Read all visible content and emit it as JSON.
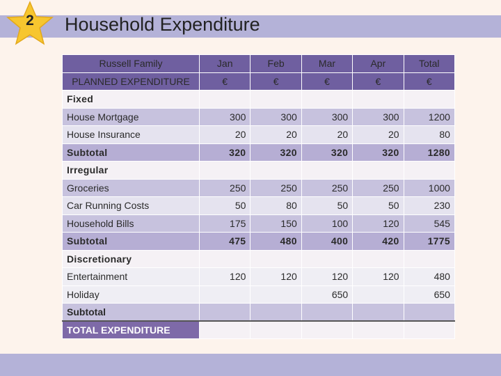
{
  "slide": {
    "number": "2",
    "title": "Household Expenditure"
  },
  "table": {
    "header1": {
      "label": "Russell Family",
      "cols": [
        "Jan",
        "Feb",
        "Mar",
        "Apr",
        "Total"
      ]
    },
    "header2": {
      "label": "PLANNED EXPENDITURE",
      "cols": [
        "€",
        "€",
        "€",
        "€",
        "€"
      ]
    },
    "fixed_label": "Fixed",
    "house_mortgage": {
      "label": "House Mortgage",
      "values": [
        "300",
        "300",
        "300",
        "300",
        "1200"
      ]
    },
    "house_insurance": {
      "label": "House Insurance",
      "values": [
        "20",
        "20",
        "20",
        "20",
        "80"
      ]
    },
    "fixed_subtotal": {
      "label": "Subtotal",
      "values": [
        "320",
        "320",
        "320",
        "320",
        "1280"
      ]
    },
    "irregular_label": "Irregular",
    "groceries": {
      "label": "Groceries",
      "values": [
        "250",
        "250",
        "250",
        "250",
        "1000"
      ]
    },
    "car_running_costs": {
      "label": "Car Running Costs",
      "values": [
        "50",
        "80",
        "50",
        "50",
        "230"
      ]
    },
    "household_bills": {
      "label": "Household Bills",
      "values": [
        "175",
        "150",
        "100",
        "120",
        "545"
      ]
    },
    "irregular_subtotal": {
      "label": "Subtotal",
      "values": [
        "475",
        "480",
        "400",
        "420",
        "1775"
      ]
    },
    "discretionary_label": "Discretionary",
    "entertainment": {
      "label": "Entertainment",
      "values": [
        "120",
        "120",
        "120",
        "120",
        "480"
      ]
    },
    "holiday": {
      "label": "Holiday",
      "values": [
        "",
        "",
        "650",
        "",
        "650"
      ]
    },
    "discretionary_subtotal": {
      "label": "Subtotal",
      "values": [
        "",
        "",
        "",
        "",
        ""
      ]
    },
    "total_expenditure": {
      "label": "TOTAL EXPENDITURE",
      "values": [
        "",
        "",
        "",
        "",
        ""
      ]
    }
  },
  "colors": {
    "accent_band": "#b4b2d8",
    "header": "#6f5fa0",
    "star": "#f7c62f"
  }
}
